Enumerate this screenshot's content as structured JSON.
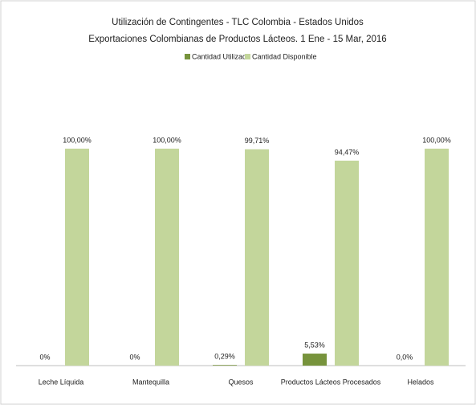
{
  "chart_data": {
    "type": "bar",
    "title": "Utilización de Contingentes - TLC Colombia - Estados Unidos",
    "subtitle": "Exportaciones Colombianas de Productos Lácteos. 1 Ene - 15 Mar, 2016",
    "categories": [
      "Leche Líquida",
      "Mantequilla",
      "Quesos",
      "Productos Lácteos Procesados",
      "Helados"
    ],
    "series": [
      {
        "name": "Cantidad Utilizada",
        "color": "#77933c",
        "values": [
          0,
          0,
          0.29,
          5.53,
          0.0
        ],
        "value_labels": [
          "0%",
          "0%",
          "0,29%",
          "5,53%",
          "0,0%"
        ]
      },
      {
        "name": "Cantidad Disponible",
        "color": "#c3d69b",
        "values": [
          100,
          100,
          99.71,
          94.47,
          100
        ],
        "value_labels": [
          "100,00%",
          "100,00%",
          "99,71%",
          "94,47%",
          "100,00%"
        ]
      }
    ],
    "legend": "top"
  }
}
